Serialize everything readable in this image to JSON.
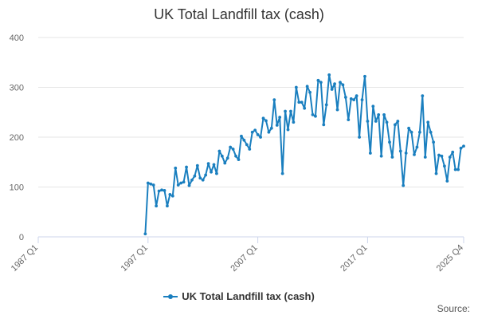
{
  "colors": {
    "series": "#1a7fbf",
    "grid": "#e6e6e6",
    "axis": "#ccd6eb",
    "text": "#666666"
  },
  "credits": "Source:",
  "chart_data": {
    "type": "line",
    "title": "UK Total Landfill tax (cash)",
    "xlabel": "",
    "ylabel": "",
    "x_range": [
      "1987 Q1",
      "2025 Q4"
    ],
    "x_ticks": [
      "1987 Q1",
      "1997 Q1",
      "2007 Q1",
      "2017 Q1",
      "2025 Q4"
    ],
    "y_ticks": [
      0,
      100,
      200,
      300,
      400
    ],
    "ylim": [
      0,
      400
    ],
    "grid": "horizontal",
    "legend": "bottom",
    "series": [
      {
        "name": "UK Total Landfill tax (cash)",
        "x": [
          "1996 Q4",
          "1997 Q1",
          "1997 Q2",
          "1997 Q3",
          "1997 Q4",
          "1998 Q1",
          "1998 Q2",
          "1998 Q3",
          "1998 Q4",
          "1999 Q1",
          "1999 Q2",
          "1999 Q3",
          "1999 Q4",
          "2000 Q1",
          "2000 Q2",
          "2000 Q3",
          "2000 Q4",
          "2001 Q1",
          "2001 Q2",
          "2001 Q3",
          "2001 Q4",
          "2002 Q1",
          "2002 Q2",
          "2002 Q3",
          "2002 Q4",
          "2003 Q1",
          "2003 Q2",
          "2003 Q3",
          "2003 Q4",
          "2004 Q1",
          "2004 Q2",
          "2004 Q3",
          "2004 Q4",
          "2005 Q1",
          "2005 Q2",
          "2005 Q3",
          "2005 Q4",
          "2006 Q1",
          "2006 Q2",
          "2006 Q3",
          "2006 Q4",
          "2007 Q1",
          "2007 Q2",
          "2007 Q3",
          "2007 Q4",
          "2008 Q1",
          "2008 Q2",
          "2008 Q3",
          "2008 Q4",
          "2009 Q1",
          "2009 Q2",
          "2009 Q3",
          "2009 Q4",
          "2010 Q1",
          "2010 Q2",
          "2010 Q3",
          "2010 Q4",
          "2011 Q1",
          "2011 Q2",
          "2011 Q3",
          "2011 Q4",
          "2012 Q1",
          "2012 Q2",
          "2012 Q3",
          "2012 Q4",
          "2013 Q1",
          "2013 Q2",
          "2013 Q3",
          "2013 Q4",
          "2014 Q1",
          "2014 Q2",
          "2014 Q3",
          "2014 Q4",
          "2015 Q1",
          "2015 Q2",
          "2015 Q3",
          "2015 Q4",
          "2016 Q1",
          "2016 Q2",
          "2016 Q3",
          "2016 Q4",
          "2017 Q1",
          "2017 Q2",
          "2017 Q3",
          "2017 Q4",
          "2018 Q1",
          "2018 Q2",
          "2018 Q3",
          "2018 Q4",
          "2019 Q1",
          "2019 Q2",
          "2019 Q3",
          "2019 Q4",
          "2020 Q1",
          "2020 Q2",
          "2020 Q3",
          "2020 Q4",
          "2021 Q1",
          "2021 Q2",
          "2021 Q3",
          "2021 Q4",
          "2022 Q1",
          "2022 Q2",
          "2022 Q3",
          "2022 Q4",
          "2023 Q1",
          "2023 Q2",
          "2023 Q3",
          "2023 Q4",
          "2024 Q1",
          "2024 Q2",
          "2024 Q3",
          "2024 Q4",
          "2025 Q1",
          "2025 Q2",
          "2025 Q3",
          "2025 Q4"
        ],
        "values": [
          6,
          108,
          106,
          104,
          62,
          92,
          94,
          93,
          62,
          85,
          82,
          138,
          104,
          108,
          110,
          140,
          103,
          114,
          122,
          143,
          118,
          114,
          124,
          147,
          130,
          145,
          127,
          172,
          162,
          148,
          158,
          180,
          176,
          162,
          155,
          202,
          194,
          185,
          176,
          210,
          214,
          205,
          200,
          238,
          233,
          210,
          218,
          275,
          224,
          240,
          127,
          252,
          215,
          252,
          230,
          300,
          270,
          270,
          258,
          302,
          290,
          245,
          242,
          314,
          310,
          225,
          265,
          325,
          296,
          307,
          255,
          310,
          305,
          280,
          235,
          277,
          275,
          283,
          200,
          275,
          322,
          232,
          168,
          262,
          232,
          245,
          162,
          245,
          230,
          190,
          160,
          225,
          232,
          172,
          103,
          168,
          218,
          210,
          165,
          180,
          210,
          283,
          160,
          230,
          210,
          190,
          127,
          164,
          162,
          142,
          112,
          160,
          170,
          135,
          135,
          178,
          182
        ]
      }
    ]
  }
}
